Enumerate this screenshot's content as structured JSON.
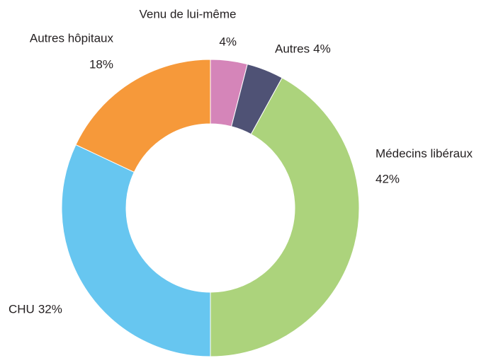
{
  "chart_data": {
    "type": "donut",
    "categories": [
      "Venu de lui-même",
      "Autres",
      "Médecins libéraux",
      "CHU",
      "Autres hôpitaux"
    ],
    "values": [
      4,
      4,
      42,
      32,
      18
    ],
    "value_labels": [
      "4%",
      "4%",
      "42%",
      "32%",
      "18%"
    ],
    "colors": [
      "#d585b9",
      "#4f5275",
      "#acd37c",
      "#67c6f0",
      "#f6993a"
    ]
  }
}
